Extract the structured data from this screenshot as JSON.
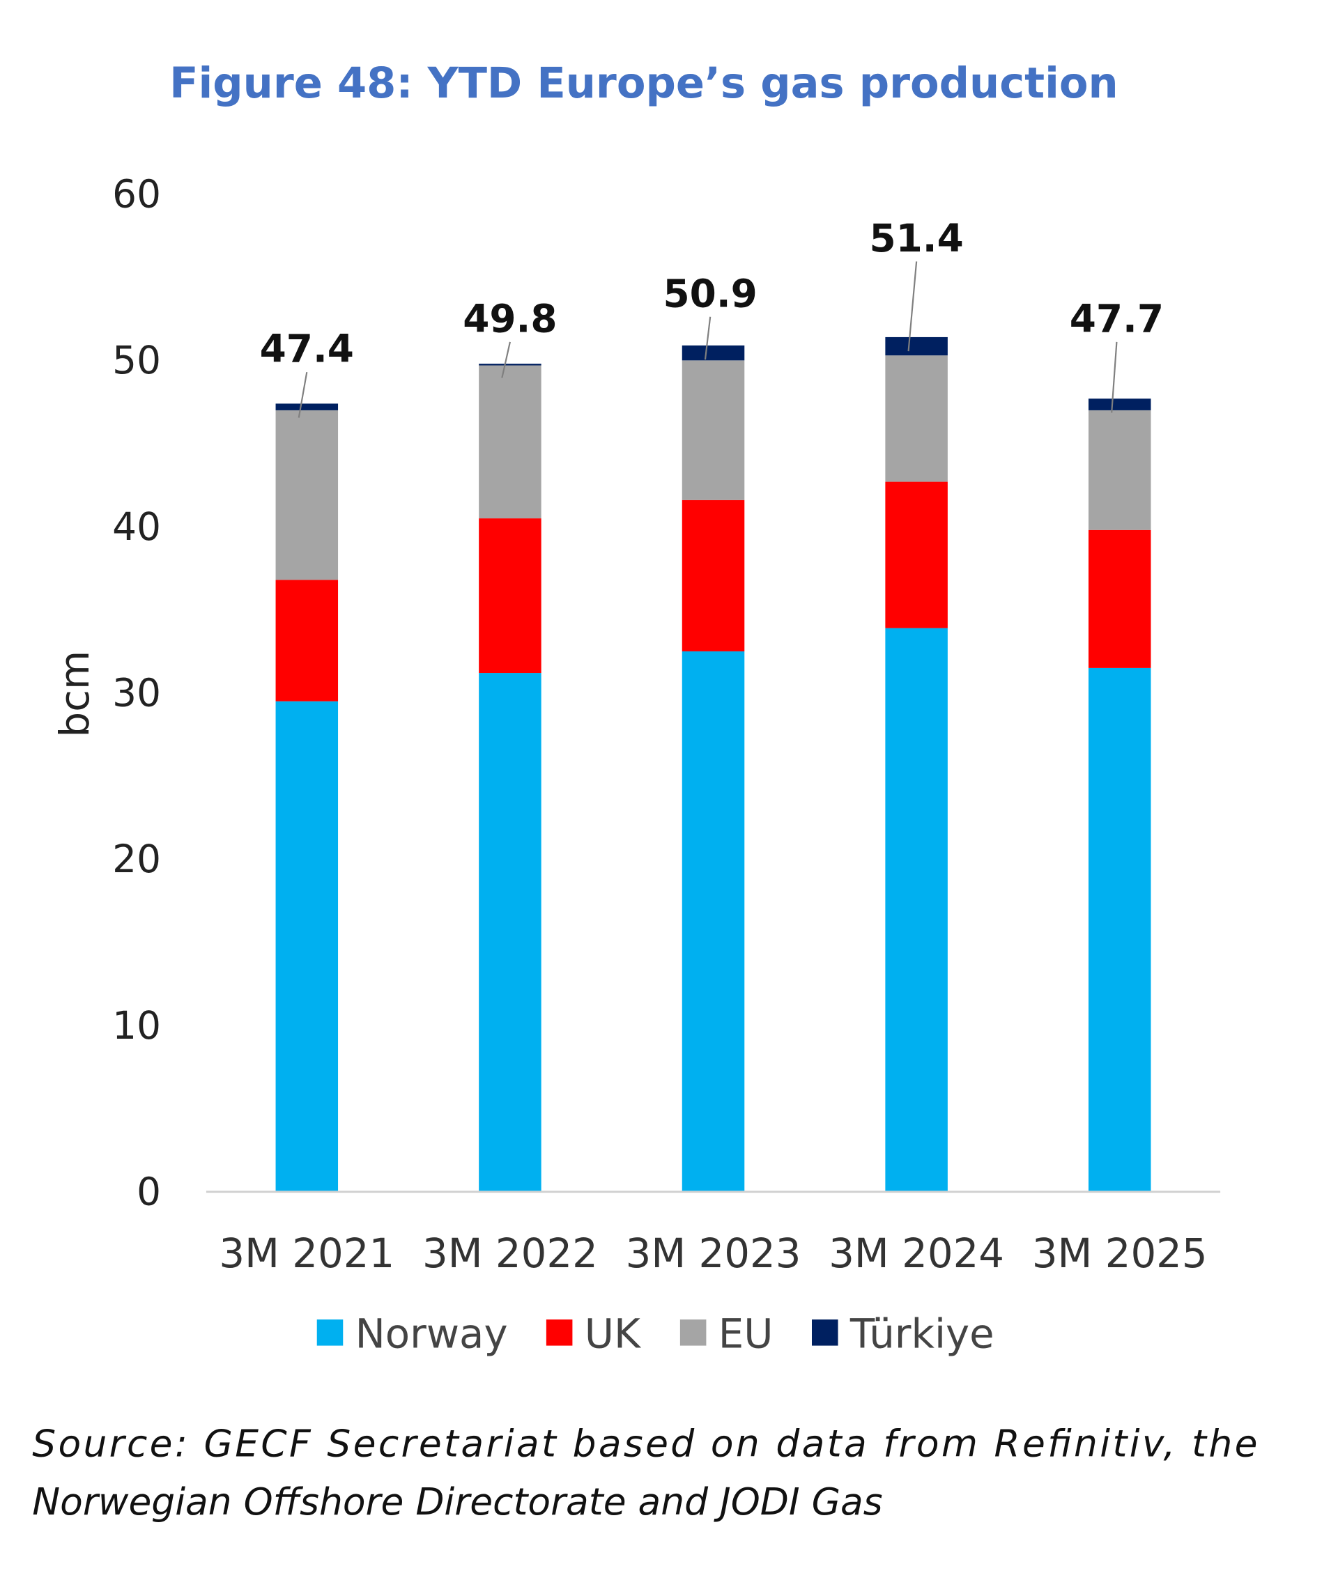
{
  "chart_data": {
    "type": "bar",
    "stacked": true,
    "title": "Figure 48: YTD Europe’s gas production",
    "xlabel": "",
    "ylabel": "bcm",
    "ylim": [
      0,
      60
    ],
    "yticks": [
      0,
      10,
      20,
      30,
      40,
      50,
      60
    ],
    "grid": false,
    "legend_position": "bottom",
    "categories": [
      "3M 2021",
      "3M 2022",
      "3M 2023",
      "3M 2024",
      "3M 2025"
    ],
    "series": [
      {
        "name": "Norway",
        "color": "#00B0F0",
        "values": [
          29.5,
          31.2,
          32.5,
          33.9,
          31.5
        ]
      },
      {
        "name": "UK",
        "color": "#FF0000",
        "values": [
          7.3,
          9.3,
          9.1,
          8.8,
          8.3
        ]
      },
      {
        "name": "EU",
        "color": "#A5A5A5",
        "values": [
          10.2,
          9.2,
          8.4,
          7.6,
          7.2
        ]
      },
      {
        "name": "Türkiye",
        "color": "#002060",
        "values": [
          0.4,
          0.1,
          0.9,
          1.1,
          0.7
        ]
      }
    ],
    "totals": [
      "47.4",
      "49.8",
      "50.9",
      "51.4",
      "47.7"
    ]
  },
  "source": {
    "line1": "Source: GECF Secretariat based on data from Refinitiv, the",
    "line2": "Norwegian Offshore Directorate and JODI Gas"
  }
}
